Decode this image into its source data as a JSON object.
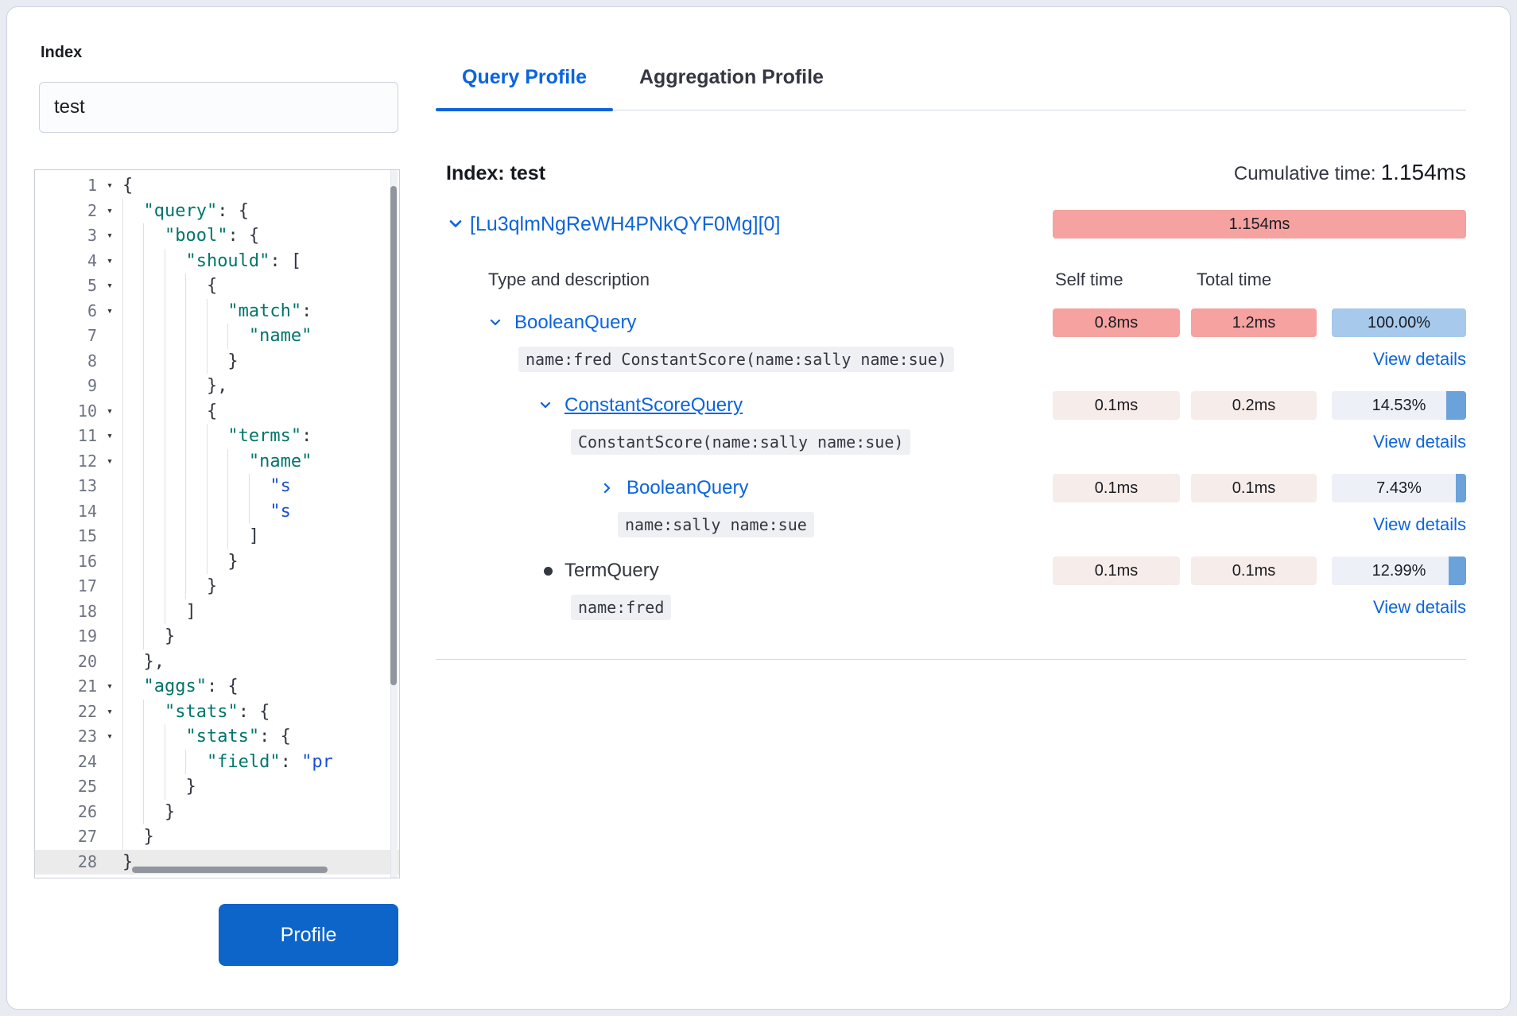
{
  "colors": {
    "accent": "#0b64dd",
    "button": "#0d64c9",
    "hot": "#f5a2a0",
    "cold": "#f6ece9",
    "pct_fill": "#6ba2da",
    "pct_full": "#a6c9ec",
    "pct_track": "#edf1f7",
    "code_key": "#00756c",
    "code_str": "#1d4ed8",
    "border": "#d3dae6"
  },
  "left_panel": {
    "index_label": "Index",
    "index_input": {
      "value": "test"
    },
    "profile_button_label": "Profile",
    "editor": {
      "active_line": 28,
      "lines": [
        {
          "n": 1,
          "fold": true,
          "ind": 0,
          "segs": [
            [
              "p",
              "{"
            ]
          ]
        },
        {
          "n": 2,
          "fold": true,
          "ind": 2,
          "segs": [
            [
              "k",
              "\"query\""
            ],
            [
              "p",
              ": {"
            ]
          ]
        },
        {
          "n": 3,
          "fold": true,
          "ind": 4,
          "segs": [
            [
              "k",
              "\"bool\""
            ],
            [
              "p",
              ": {"
            ]
          ]
        },
        {
          "n": 4,
          "fold": true,
          "ind": 6,
          "segs": [
            [
              "k",
              "\"should\""
            ],
            [
              "p",
              ": ["
            ]
          ]
        },
        {
          "n": 5,
          "fold": true,
          "ind": 8,
          "segs": [
            [
              "p",
              "{"
            ]
          ]
        },
        {
          "n": 6,
          "fold": true,
          "ind": 10,
          "segs": [
            [
              "k",
              "\"match\""
            ],
            [
              "p",
              ":"
            ]
          ]
        },
        {
          "n": 7,
          "fold": false,
          "ind": 12,
          "segs": [
            [
              "k",
              "\"name\""
            ]
          ]
        },
        {
          "n": 8,
          "fold": false,
          "ind": 10,
          "segs": [
            [
              "p",
              "}"
            ]
          ]
        },
        {
          "n": 9,
          "fold": false,
          "ind": 8,
          "segs": [
            [
              "p",
              "},"
            ]
          ]
        },
        {
          "n": 10,
          "fold": true,
          "ind": 8,
          "segs": [
            [
              "p",
              "{"
            ]
          ]
        },
        {
          "n": 11,
          "fold": true,
          "ind": 10,
          "segs": [
            [
              "k",
              "\"terms\""
            ],
            [
              "p",
              ":"
            ]
          ]
        },
        {
          "n": 12,
          "fold": true,
          "ind": 12,
          "segs": [
            [
              "k",
              "\"name\""
            ]
          ]
        },
        {
          "n": 13,
          "fold": false,
          "ind": 14,
          "segs": [
            [
              "s",
              "\"s"
            ]
          ]
        },
        {
          "n": 14,
          "fold": false,
          "ind": 14,
          "segs": [
            [
              "s",
              "\"s"
            ]
          ]
        },
        {
          "n": 15,
          "fold": false,
          "ind": 12,
          "segs": [
            [
              "p",
              "]"
            ]
          ]
        },
        {
          "n": 16,
          "fold": false,
          "ind": 10,
          "segs": [
            [
              "p",
              "}"
            ]
          ]
        },
        {
          "n": 17,
          "fold": false,
          "ind": 8,
          "segs": [
            [
              "p",
              "}"
            ]
          ]
        },
        {
          "n": 18,
          "fold": false,
          "ind": 6,
          "segs": [
            [
              "p",
              "]"
            ]
          ]
        },
        {
          "n": 19,
          "fold": false,
          "ind": 4,
          "segs": [
            [
              "p",
              "}"
            ]
          ]
        },
        {
          "n": 20,
          "fold": false,
          "ind": 2,
          "segs": [
            [
              "p",
              "},"
            ]
          ]
        },
        {
          "n": 21,
          "fold": true,
          "ind": 2,
          "segs": [
            [
              "k",
              "\"aggs\""
            ],
            [
              "p",
              ": {"
            ]
          ]
        },
        {
          "n": 22,
          "fold": true,
          "ind": 4,
          "segs": [
            [
              "k",
              "\"stats\""
            ],
            [
              "p",
              ": {"
            ]
          ]
        },
        {
          "n": 23,
          "fold": true,
          "ind": 6,
          "segs": [
            [
              "k",
              "\"stats\""
            ],
            [
              "p",
              ": {"
            ]
          ]
        },
        {
          "n": 24,
          "fold": false,
          "ind": 8,
          "segs": [
            [
              "k",
              "\"field\""
            ],
            [
              "p",
              ": "
            ],
            [
              "s",
              "\"pr"
            ]
          ]
        },
        {
          "n": 25,
          "fold": false,
          "ind": 6,
          "segs": [
            [
              "p",
              "}"
            ]
          ]
        },
        {
          "n": 26,
          "fold": false,
          "ind": 4,
          "segs": [
            [
              "p",
              "}"
            ]
          ]
        },
        {
          "n": 27,
          "fold": false,
          "ind": 2,
          "segs": [
            [
              "p",
              "}"
            ]
          ]
        },
        {
          "n": 28,
          "fold": false,
          "ind": 0,
          "segs": [
            [
              "p",
              "}"
            ]
          ]
        }
      ]
    }
  },
  "tabs": [
    {
      "label": "Query Profile",
      "active": true
    },
    {
      "label": "Aggregation Profile",
      "active": false
    }
  ],
  "profile": {
    "index_heading": "Index: test",
    "cumulative_label": "Cumulative time:",
    "cumulative_value": "1.154ms",
    "shard": {
      "id": "[Lu3qlmNgReWH4PNkQYF0Mg][0]",
      "time": "1.154ms"
    },
    "columns": {
      "type": "Type and description",
      "self": "Self time",
      "total": "Total time"
    },
    "view_details_label": "View details",
    "rows": [
      {
        "name": "BooleanQuery",
        "marker": "chevron-down",
        "indent": 0,
        "self": "0.8ms",
        "total": "1.2ms",
        "heat": "hot",
        "percent_label": "100.00%",
        "percent": 100,
        "desc": "name:fred ConstantScore(name:sally name:sue)",
        "underlined": false
      },
      {
        "name": "ConstantScoreQuery",
        "marker": "chevron-down",
        "indent": 1,
        "self": "0.1ms",
        "total": "0.2ms",
        "heat": "cold",
        "percent_label": "14.53%",
        "percent": 14.53,
        "desc": "ConstantScore(name:sally name:sue)",
        "underlined": true
      },
      {
        "name": "BooleanQuery",
        "marker": "chevron-right",
        "indent": 2,
        "self": "0.1ms",
        "total": "0.1ms",
        "heat": "cold",
        "percent_label": "7.43%",
        "percent": 7.43,
        "desc": "name:sally name:sue",
        "underlined": false
      },
      {
        "name": "TermQuery",
        "marker": "dot",
        "indent": 1,
        "self": "0.1ms",
        "total": "0.1ms",
        "heat": "cold",
        "percent_label": "12.99%",
        "percent": 12.99,
        "desc": "name:fred",
        "underlined": false
      }
    ]
  }
}
